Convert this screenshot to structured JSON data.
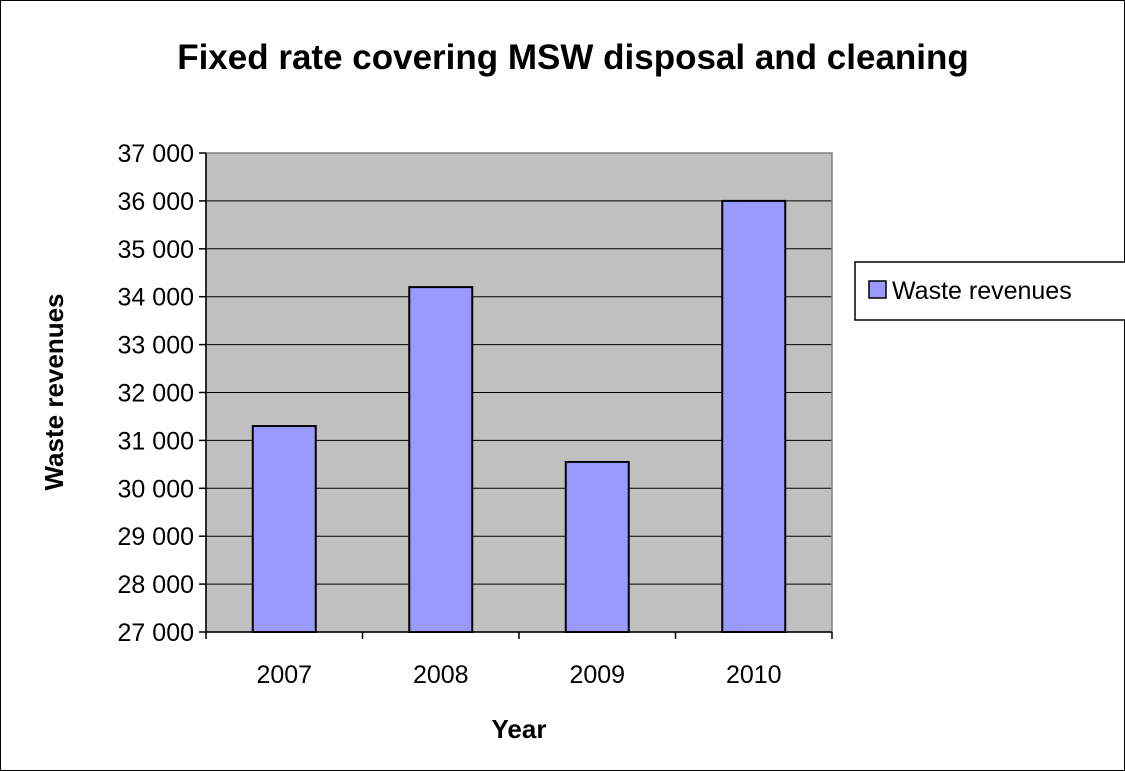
{
  "chart_data": {
    "type": "bar",
    "title": "Fixed rate covering MSW disposal and cleaning",
    "xlabel": "Year",
    "ylabel": "Waste revenues",
    "categories": [
      "2007",
      "2008",
      "2009",
      "2010"
    ],
    "series": [
      {
        "name": "Waste revenues",
        "values": [
          31300,
          34200,
          30550,
          36000
        ]
      }
    ],
    "ylim": [
      27000,
      37000
    ],
    "y_ticks": [
      27000,
      28000,
      29000,
      30000,
      31000,
      32000,
      33000,
      34000,
      35000,
      36000,
      37000
    ],
    "y_tick_labels": [
      "27 000",
      "28 000",
      "29 000",
      "30 000",
      "31 000",
      "32 000",
      "33 000",
      "34 000",
      "35 000",
      "36 000",
      "37 000"
    ],
    "grid": true,
    "legend_position": "right",
    "colors": {
      "bar_fill": "#9999ff",
      "plot_background": "#c0c0c0",
      "gridline": "#000000",
      "border": "#000000"
    }
  }
}
